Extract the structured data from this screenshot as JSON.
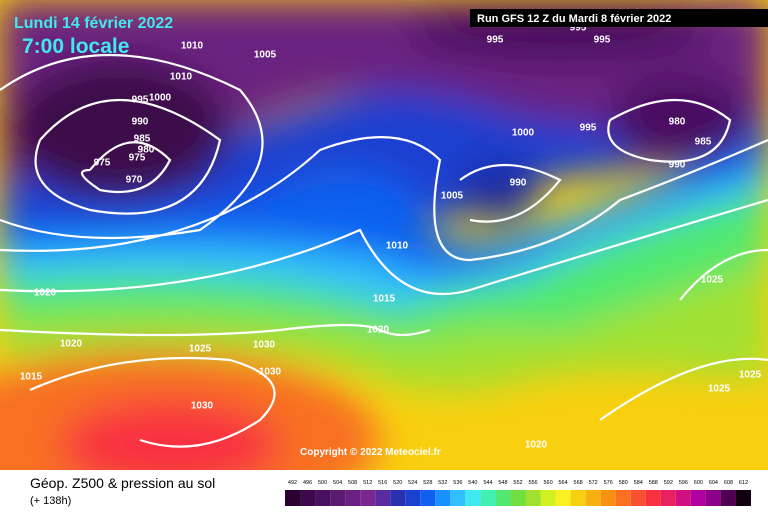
{
  "header": {
    "date": "Lundi 14 février 2022",
    "time": "7:00 locale",
    "run": "Run GFS 12 Z du Mardi 8 février 2022"
  },
  "isobar_labels": [
    1010,
    1005,
    1010,
    995,
    1000,
    990,
    985,
    980,
    975,
    975,
    970,
    995,
    995,
    995,
    1000,
    995,
    980,
    985,
    990,
    990,
    1005,
    1010,
    1015,
    1020,
    1020,
    1020,
    1025,
    1030,
    1030,
    1015,
    1030,
    1025,
    1025,
    1025,
    1020
  ],
  "copyright": "Copyright © 2022 Meteociel.fr",
  "legend": {
    "title": "Géop. Z500 & pression au sol",
    "lead": "(+ 138h)",
    "labels": [
      492,
      496,
      500,
      504,
      508,
      512,
      516,
      520,
      524,
      528,
      532,
      536,
      540,
      544,
      548,
      552,
      556,
      560,
      564,
      568,
      572,
      576,
      580,
      584,
      588,
      592,
      596,
      600,
      604,
      608,
      612
    ],
    "colors": [
      "#2a0030",
      "#3c0a4a",
      "#4a1060",
      "#5a1a70",
      "#6a2080",
      "#7a2890",
      "#5a2aa0",
      "#2a30b0",
      "#1a40d0",
      "#1060f0",
      "#1890ff",
      "#30c0ff",
      "#40e8f0",
      "#40f0b0",
      "#50e870",
      "#70e040",
      "#a0e030",
      "#d0f020",
      "#f8f020",
      "#f8d010",
      "#f8b010",
      "#f89010",
      "#f87020",
      "#f85030",
      "#f83040",
      "#e82060",
      "#d01080",
      "#b000a0",
      "#8a0088",
      "#500050",
      "#100010"
    ]
  }
}
